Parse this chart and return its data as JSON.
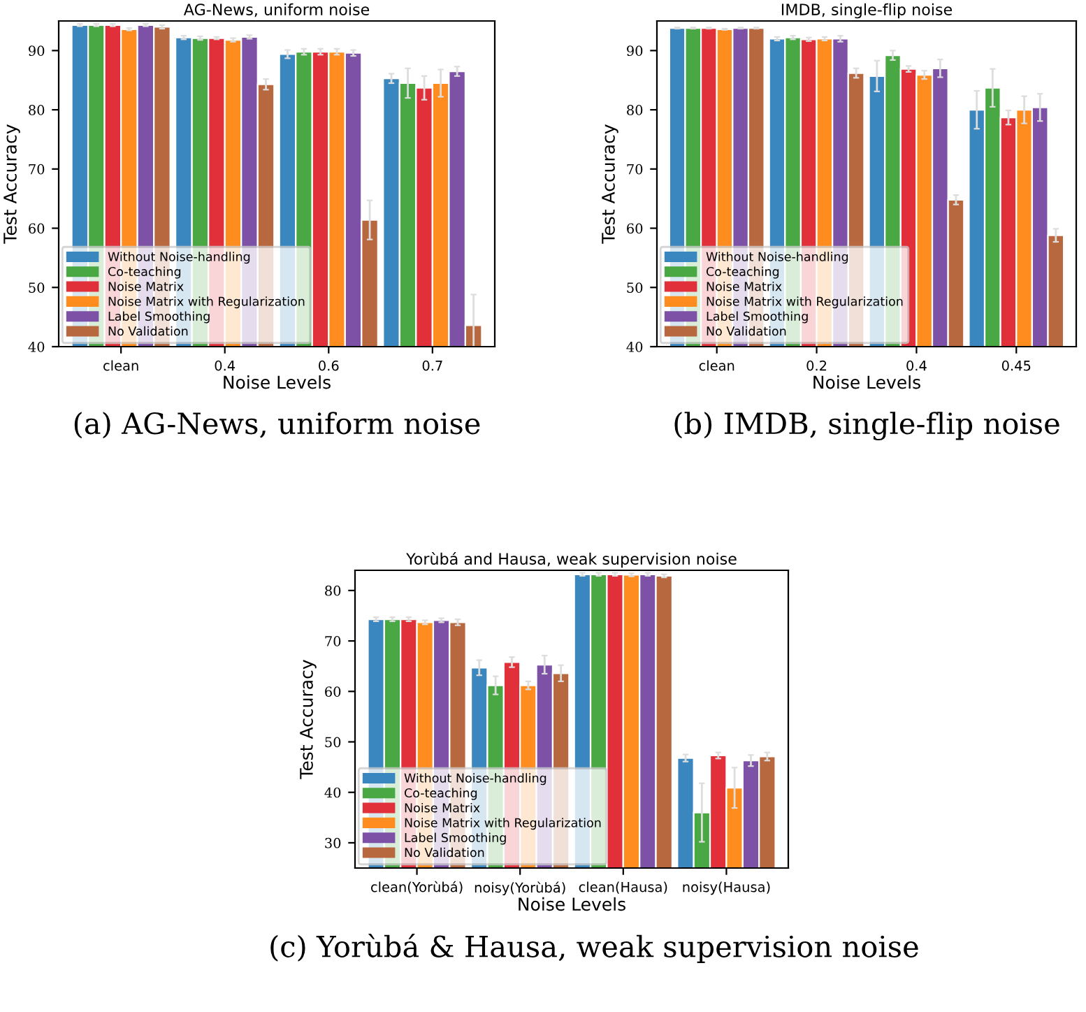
{
  "chart_data": [
    {
      "type": "bar",
      "title": "AG-News, uniform noise",
      "xlabel": "Noise Levels",
      "ylabel": "Test Accuracy",
      "categories": [
        "clean",
        "0.4",
        "0.6",
        "0.7"
      ],
      "ylim": [
        40,
        95
      ],
      "yticks": [
        40,
        50,
        60,
        70,
        80,
        90
      ],
      "legend": "bottom left",
      "grid": false,
      "annotations": [
        "(a) AG-News, uniform noise"
      ],
      "series": [
        {
          "name": "Without Noise-handling",
          "color": "#3a87c0",
          "values": [
            94.3,
            92.2,
            89.4,
            85.3
          ],
          "errors": [
            0.2,
            0.3,
            0.7,
            0.8
          ]
        },
        {
          "name": "Co-teaching",
          "color": "#4aa844",
          "values": [
            94.3,
            92.1,
            89.8,
            84.5
          ],
          "errors": [
            0.2,
            0.3,
            0.5,
            2.5
          ]
        },
        {
          "name": "Noise Matrix",
          "color": "#e1303a",
          "values": [
            94.3,
            92.1,
            89.8,
            83.7
          ],
          "errors": [
            0.2,
            0.2,
            0.5,
            2.0
          ]
        },
        {
          "name": "Noise Matrix with Regularization",
          "color": "#ff8c1e",
          "values": [
            93.6,
            91.8,
            89.8,
            84.5
          ],
          "errors": [
            0.2,
            0.3,
            0.5,
            2.3
          ]
        },
        {
          "name": "Label Smoothing",
          "color": "#7d51a6",
          "values": [
            94.3,
            92.3,
            89.6,
            86.5
          ],
          "errors": [
            0.2,
            0.3,
            0.5,
            0.8
          ]
        },
        {
          "name": "No Validation",
          "color": "#b8683e",
          "values": [
            94.0,
            84.3,
            61.4,
            43.6
          ],
          "errors": [
            0.3,
            0.9,
            3.3,
            5.2
          ]
        }
      ]
    },
    {
      "type": "bar",
      "title": "IMDB, single-flip noise",
      "xlabel": "Noise Levels",
      "ylabel": "Test Accuracy",
      "categories": [
        "clean",
        "0.2",
        "0.4",
        "0.45"
      ],
      "ylim": [
        40,
        95
      ],
      "yticks": [
        40,
        50,
        60,
        70,
        80,
        90
      ],
      "legend": "bottom left",
      "grid": false,
      "annotations": [
        "(b) IMDB, single-flip noise"
      ],
      "series": [
        {
          "name": "Without Noise-handling",
          "color": "#3a87c0",
          "values": [
            93.8,
            92.0,
            85.7,
            80.0
          ],
          "errors": [
            0.1,
            0.3,
            2.6,
            3.2
          ]
        },
        {
          "name": "Co-teaching",
          "color": "#4aa844",
          "values": [
            93.8,
            92.2,
            89.2,
            83.7
          ],
          "errors": [
            0.1,
            0.3,
            0.8,
            3.2
          ]
        },
        {
          "name": "Noise Matrix",
          "color": "#e1303a",
          "values": [
            93.8,
            91.9,
            86.9,
            78.7
          ],
          "errors": [
            0.1,
            0.3,
            0.5,
            1.2
          ]
        },
        {
          "name": "Noise Matrix with Regularization",
          "color": "#ff8c1e",
          "values": [
            93.6,
            92.0,
            85.9,
            80.0
          ],
          "errors": [
            0.1,
            0.3,
            0.7,
            2.3
          ]
        },
        {
          "name": "Label Smoothing",
          "color": "#7d51a6",
          "values": [
            93.8,
            92.0,
            87.0,
            80.4
          ],
          "errors": [
            0.1,
            0.5,
            1.5,
            2.3
          ]
        },
        {
          "name": "No Validation",
          "color": "#b8683e",
          "values": [
            93.8,
            86.2,
            64.8,
            58.8
          ],
          "errors": [
            0.1,
            0.8,
            0.8,
            1.1
          ]
        }
      ]
    },
    {
      "type": "bar",
      "title": "Yorùbá and Hausa, weak supervision noise",
      "xlabel": "Noise Levels",
      "ylabel": "Test Accuracy",
      "categories": [
        "clean(Yorùbá)",
        "noisy(Yorùbá)",
        "clean(Hausa)",
        "noisy(Hausa)"
      ],
      "ylim": [
        25,
        84
      ],
      "yticks": [
        30,
        40,
        50,
        60,
        70,
        80
      ],
      "legend": "bottom left",
      "grid": false,
      "annotations": [
        "(c) Yorùbá & Hausa, weak supervision noise"
      ],
      "series": [
        {
          "name": "Without Noise-handling",
          "color": "#3a87c0",
          "values": [
            74.3,
            64.7,
            83.2,
            46.8
          ],
          "errors": [
            0.4,
            1.5,
            0.3,
            0.7
          ]
        },
        {
          "name": "Co-teaching",
          "color": "#4aa844",
          "values": [
            74.3,
            61.2,
            83.2,
            36.0
          ],
          "errors": [
            0.4,
            1.8,
            0.3,
            5.8
          ]
        },
        {
          "name": "Noise Matrix",
          "color": "#e1303a",
          "values": [
            74.3,
            65.8,
            83.2,
            47.3
          ],
          "errors": [
            0.4,
            1.0,
            0.3,
            0.6
          ]
        },
        {
          "name": "Noise Matrix with Regularization",
          "color": "#ff8c1e",
          "values": [
            73.7,
            61.2,
            83.1,
            40.9
          ],
          "errors": [
            0.4,
            0.8,
            0.3,
            4.0
          ]
        },
        {
          "name": "Label Smoothing",
          "color": "#7d51a6",
          "values": [
            74.1,
            65.3,
            83.2,
            46.3
          ],
          "errors": [
            0.4,
            1.8,
            0.3,
            1.1
          ]
        },
        {
          "name": "No Validation",
          "color": "#b8683e",
          "values": [
            73.7,
            63.6,
            82.9,
            47.1
          ],
          "errors": [
            0.6,
            1.6,
            0.3,
            0.8
          ]
        }
      ]
    }
  ]
}
